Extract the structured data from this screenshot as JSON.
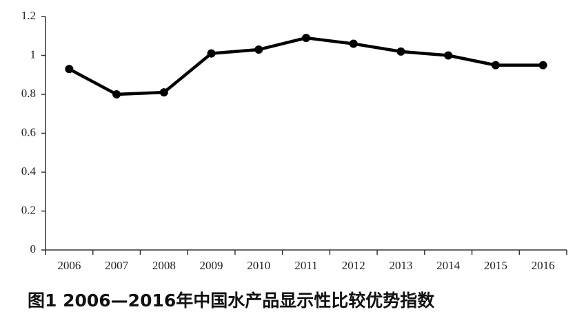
{
  "chart_data": {
    "type": "line",
    "title": "图1 2006—2016年中国水产品显示性比较优势指数",
    "categories": [
      "2006",
      "2007",
      "2008",
      "2009",
      "2010",
      "2011",
      "2012",
      "2013",
      "2014",
      "2015",
      "2016"
    ],
    "values": [
      0.93,
      0.8,
      0.81,
      1.01,
      1.03,
      1.09,
      1.06,
      1.02,
      1.0,
      0.95,
      0.95
    ],
    "color": "#000000",
    "ylim": [
      0,
      1.2
    ],
    "yticks": [
      0,
      0.2,
      0.4,
      0.6,
      0.8,
      1,
      1.2
    ],
    "grid": false
  }
}
